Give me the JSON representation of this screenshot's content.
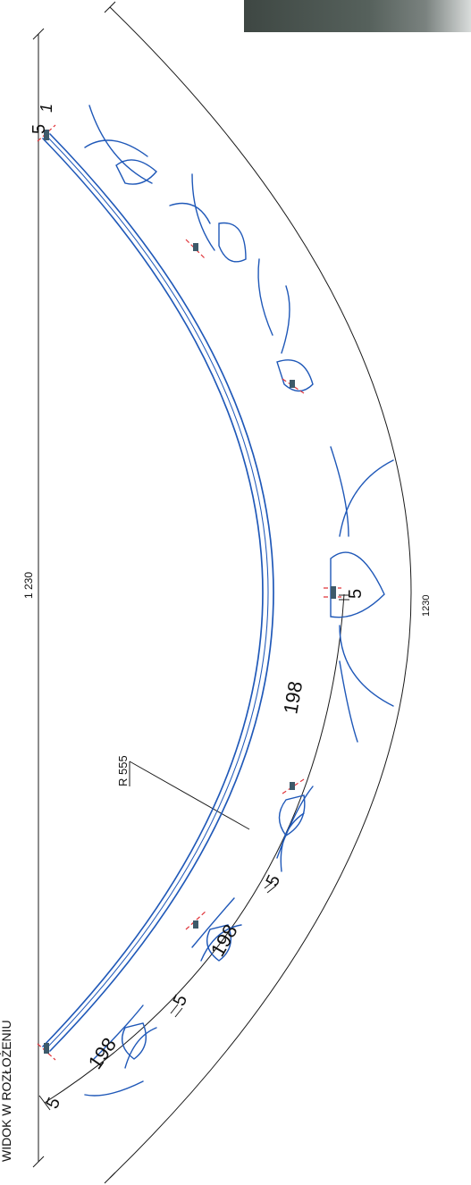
{
  "title": "WIDOK W ROZŁOŻENIU",
  "dimensions": {
    "top_chord": "1 230",
    "outer_arc": "1230",
    "radius": "R 555",
    "segment_1": "198",
    "segment_2": "198",
    "segment_3": "198",
    "gap_1": "5",
    "gap_2": "5",
    "gap_3": "5",
    "gap_4": "5",
    "end_gap": "5",
    "end_mark": "1"
  },
  "colors": {
    "line": "#1a1a1a",
    "ornament": "#1f58b8",
    "cut_marks": "#e0343a"
  }
}
